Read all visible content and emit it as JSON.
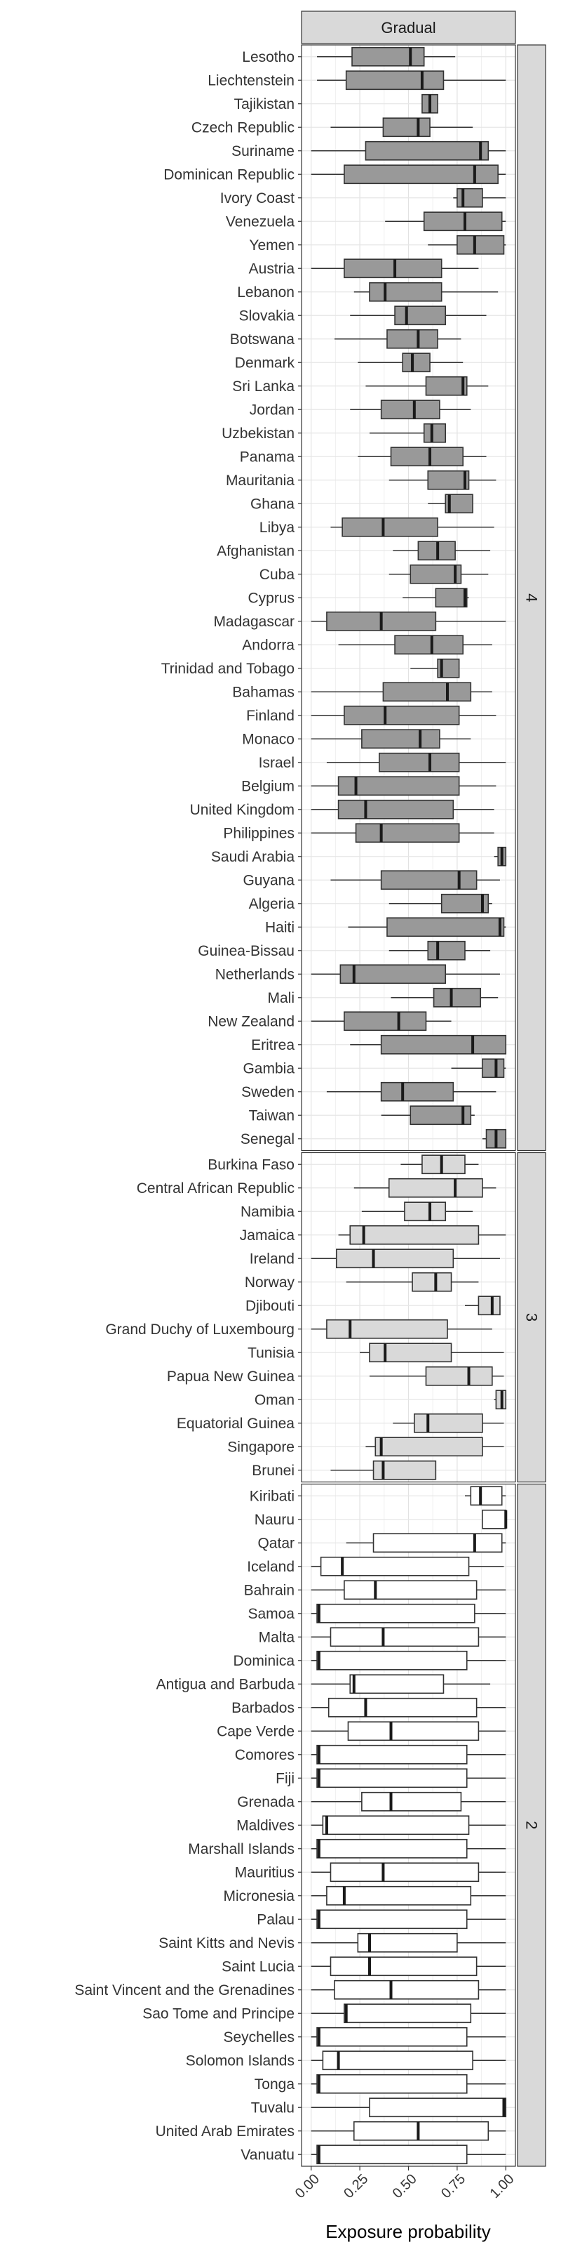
{
  "chart_data": {
    "type": "boxplot",
    "facet_title": "Gradual",
    "xlabel": "Exposure probability",
    "xlim": [
      0,
      1
    ],
    "x_ticks": [
      0,
      0.25,
      0.5,
      0.75,
      1
    ],
    "x_tick_labels": [
      "0.00",
      "0.25",
      "0.50",
      "0.75",
      "1.00"
    ],
    "grid": true,
    "panels": [
      {
        "label": "4",
        "fill": "#999999",
        "boxes": [
          {
            "category": "Lesotho",
            "whisker_low": 0.03,
            "q1": 0.21,
            "median": 0.51,
            "q3": 0.58,
            "whisker_high": 0.74
          },
          {
            "category": "Liechtenstein",
            "whisker_low": 0.03,
            "q1": 0.18,
            "median": 0.57,
            "q3": 0.68,
            "whisker_high": 1.0
          },
          {
            "category": "Tajikistan",
            "whisker_low": 0.57,
            "q1": 0.57,
            "median": 0.61,
            "q3": 0.65,
            "whisker_high": 0.65
          },
          {
            "category": "Czech Republic",
            "whisker_low": 0.1,
            "q1": 0.37,
            "median": 0.55,
            "q3": 0.61,
            "whisker_high": 0.83
          },
          {
            "category": "Suriname",
            "whisker_low": 0.0,
            "q1": 0.28,
            "median": 0.87,
            "q3": 0.91,
            "whisker_high": 1.0
          },
          {
            "category": "Dominican Republic",
            "whisker_low": 0.0,
            "q1": 0.17,
            "median": 0.84,
            "q3": 0.96,
            "whisker_high": 1.0
          },
          {
            "category": "Ivory Coast",
            "whisker_low": 0.73,
            "q1": 0.75,
            "median": 0.78,
            "q3": 0.88,
            "whisker_high": 1.0
          },
          {
            "category": "Venezuela",
            "whisker_low": 0.38,
            "q1": 0.58,
            "median": 0.79,
            "q3": 0.98,
            "whisker_high": 1.0
          },
          {
            "category": "Yemen",
            "whisker_low": 0.6,
            "q1": 0.75,
            "median": 0.84,
            "q3": 0.99,
            "whisker_high": 1.0
          },
          {
            "category": "Austria",
            "whisker_low": 0.0,
            "q1": 0.17,
            "median": 0.43,
            "q3": 0.67,
            "whisker_high": 0.86
          },
          {
            "category": "Lebanon",
            "whisker_low": 0.22,
            "q1": 0.3,
            "median": 0.38,
            "q3": 0.67,
            "whisker_high": 0.96
          },
          {
            "category": "Slovakia",
            "whisker_low": 0.2,
            "q1": 0.43,
            "median": 0.49,
            "q3": 0.69,
            "whisker_high": 0.9
          },
          {
            "category": "Botswana",
            "whisker_low": 0.12,
            "q1": 0.39,
            "median": 0.55,
            "q3": 0.65,
            "whisker_high": 0.77
          },
          {
            "category": "Denmark",
            "whisker_low": 0.24,
            "q1": 0.47,
            "median": 0.52,
            "q3": 0.61,
            "whisker_high": 0.78
          },
          {
            "category": "Sri Lanka",
            "whisker_low": 0.28,
            "q1": 0.59,
            "median": 0.78,
            "q3": 0.8,
            "whisker_high": 0.91
          },
          {
            "category": "Jordan",
            "whisker_low": 0.2,
            "q1": 0.36,
            "median": 0.53,
            "q3": 0.66,
            "whisker_high": 0.82
          },
          {
            "category": "Uzbekistan",
            "whisker_low": 0.3,
            "q1": 0.58,
            "median": 0.62,
            "q3": 0.69,
            "whisker_high": 0.69
          },
          {
            "category": "Panama",
            "whisker_low": 0.24,
            "q1": 0.41,
            "median": 0.61,
            "q3": 0.78,
            "whisker_high": 0.9
          },
          {
            "category": "Mauritania",
            "whisker_low": 0.4,
            "q1": 0.6,
            "median": 0.79,
            "q3": 0.81,
            "whisker_high": 0.95
          },
          {
            "category": "Ghana",
            "whisker_low": 0.6,
            "q1": 0.69,
            "median": 0.71,
            "q3": 0.83,
            "whisker_high": 0.83
          },
          {
            "category": "Libya",
            "whisker_low": 0.1,
            "q1": 0.16,
            "median": 0.37,
            "q3": 0.65,
            "whisker_high": 0.94
          },
          {
            "category": "Afghanistan",
            "whisker_low": 0.42,
            "q1": 0.55,
            "median": 0.65,
            "q3": 0.74,
            "whisker_high": 0.92
          },
          {
            "category": "Cuba",
            "whisker_low": 0.4,
            "q1": 0.51,
            "median": 0.74,
            "q3": 0.77,
            "whisker_high": 0.91
          },
          {
            "category": "Cyprus",
            "whisker_low": 0.47,
            "q1": 0.64,
            "median": 0.79,
            "q3": 0.8,
            "whisker_high": 0.81
          },
          {
            "category": "Madagascar",
            "whisker_low": 0.0,
            "q1": 0.08,
            "median": 0.36,
            "q3": 0.64,
            "whisker_high": 1.0
          },
          {
            "category": "Andorra",
            "whisker_low": 0.14,
            "q1": 0.43,
            "median": 0.62,
            "q3": 0.78,
            "whisker_high": 0.93
          },
          {
            "category": "Trinidad and Tobago",
            "whisker_low": 0.51,
            "q1": 0.65,
            "median": 0.67,
            "q3": 0.76,
            "whisker_high": 0.76
          },
          {
            "category": "Bahamas",
            "whisker_low": 0.0,
            "q1": 0.37,
            "median": 0.7,
            "q3": 0.82,
            "whisker_high": 0.93
          },
          {
            "category": "Finland",
            "whisker_low": 0.0,
            "q1": 0.17,
            "median": 0.38,
            "q3": 0.76,
            "whisker_high": 0.95
          },
          {
            "category": "Monaco",
            "whisker_low": 0.0,
            "q1": 0.26,
            "median": 0.56,
            "q3": 0.66,
            "whisker_high": 0.82
          },
          {
            "category": "Israel",
            "whisker_low": 0.08,
            "q1": 0.35,
            "median": 0.61,
            "q3": 0.76,
            "whisker_high": 1.0
          },
          {
            "category": "Belgium",
            "whisker_low": 0.0,
            "q1": 0.14,
            "median": 0.23,
            "q3": 0.76,
            "whisker_high": 0.95
          },
          {
            "category": "United Kingdom",
            "whisker_low": 0.0,
            "q1": 0.14,
            "median": 0.28,
            "q3": 0.73,
            "whisker_high": 0.94
          },
          {
            "category": "Philippines",
            "whisker_low": 0.0,
            "q1": 0.23,
            "median": 0.36,
            "q3": 0.76,
            "whisker_high": 0.94
          },
          {
            "category": "Saudi Arabia",
            "whisker_low": 0.94,
            "q1": 0.96,
            "median": 0.98,
            "q3": 1.0,
            "whisker_high": 1.0
          },
          {
            "category": "Guyana",
            "whisker_low": 0.1,
            "q1": 0.36,
            "median": 0.76,
            "q3": 0.85,
            "whisker_high": 0.97
          },
          {
            "category": "Algeria",
            "whisker_low": 0.4,
            "q1": 0.67,
            "median": 0.88,
            "q3": 0.91,
            "whisker_high": 0.93
          },
          {
            "category": "Haiti",
            "whisker_low": 0.19,
            "q1": 0.39,
            "median": 0.97,
            "q3": 0.99,
            "whisker_high": 1.0
          },
          {
            "category": "Guinea-Bissau",
            "whisker_low": 0.4,
            "q1": 0.6,
            "median": 0.65,
            "q3": 0.79,
            "whisker_high": 0.92
          },
          {
            "category": "Netherlands",
            "whisker_low": 0.0,
            "q1": 0.15,
            "median": 0.22,
            "q3": 0.69,
            "whisker_high": 0.97
          },
          {
            "category": "Mali",
            "whisker_low": 0.41,
            "q1": 0.63,
            "median": 0.72,
            "q3": 0.87,
            "whisker_high": 0.96
          },
          {
            "category": "New Zealand",
            "whisker_low": 0.0,
            "q1": 0.17,
            "median": 0.45,
            "q3": 0.59,
            "whisker_high": 0.72
          },
          {
            "category": "Eritrea",
            "whisker_low": 0.2,
            "q1": 0.36,
            "median": 0.83,
            "q3": 1.0,
            "whisker_high": 1.0
          },
          {
            "category": "Gambia",
            "whisker_low": 0.72,
            "q1": 0.88,
            "median": 0.95,
            "q3": 0.99,
            "whisker_high": 1.0
          },
          {
            "category": "Sweden",
            "whisker_low": 0.08,
            "q1": 0.36,
            "median": 0.47,
            "q3": 0.73,
            "whisker_high": 0.95
          },
          {
            "category": "Taiwan",
            "whisker_low": 0.36,
            "q1": 0.51,
            "median": 0.78,
            "q3": 0.82,
            "whisker_high": 0.84
          },
          {
            "category": "Senegal",
            "whisker_low": 0.88,
            "q1": 0.9,
            "median": 0.95,
            "q3": 1.0,
            "whisker_high": 1.0
          }
        ]
      },
      {
        "label": "3",
        "fill": "#d9d9d9",
        "boxes": [
          {
            "category": "Burkina Faso",
            "whisker_low": 0.46,
            "q1": 0.57,
            "median": 0.67,
            "q3": 0.79,
            "whisker_high": 0.86
          },
          {
            "category": "Central African Republic",
            "whisker_low": 0.22,
            "q1": 0.4,
            "median": 0.74,
            "q3": 0.88,
            "whisker_high": 0.95
          },
          {
            "category": "Namibia",
            "whisker_low": 0.26,
            "q1": 0.48,
            "median": 0.61,
            "q3": 0.69,
            "whisker_high": 0.83
          },
          {
            "category": "Jamaica",
            "whisker_low": 0.14,
            "q1": 0.2,
            "median": 0.27,
            "q3": 0.86,
            "whisker_high": 1.0
          },
          {
            "category": "Ireland",
            "whisker_low": 0.0,
            "q1": 0.13,
            "median": 0.32,
            "q3": 0.73,
            "whisker_high": 0.97
          },
          {
            "category": "Norway",
            "whisker_low": 0.18,
            "q1": 0.52,
            "median": 0.64,
            "q3": 0.72,
            "whisker_high": 0.86
          },
          {
            "category": "Djibouti",
            "whisker_low": 0.79,
            "q1": 0.86,
            "median": 0.93,
            "q3": 0.97,
            "whisker_high": 0.97
          },
          {
            "category": "Grand Duchy of Luxembourg",
            "whisker_low": 0.0,
            "q1": 0.08,
            "median": 0.2,
            "q3": 0.7,
            "whisker_high": 0.93
          },
          {
            "category": "Tunisia",
            "whisker_low": 0.25,
            "q1": 0.3,
            "median": 0.38,
            "q3": 0.72,
            "whisker_high": 0.99
          },
          {
            "category": "Papua New Guinea",
            "whisker_low": 0.3,
            "q1": 0.59,
            "median": 0.81,
            "q3": 0.93,
            "whisker_high": 0.99
          },
          {
            "category": "Oman",
            "whisker_low": 0.94,
            "q1": 0.95,
            "median": 0.98,
            "q3": 1.0,
            "whisker_high": 1.0
          },
          {
            "category": "Equatorial Guinea",
            "whisker_low": 0.42,
            "q1": 0.53,
            "median": 0.6,
            "q3": 0.88,
            "whisker_high": 0.99
          },
          {
            "category": "Singapore",
            "whisker_low": 0.28,
            "q1": 0.33,
            "median": 0.36,
            "q3": 0.88,
            "whisker_high": 0.99
          },
          {
            "category": "Brunei",
            "whisker_low": 0.1,
            "q1": 0.32,
            "median": 0.37,
            "q3": 0.64,
            "whisker_high": 0.64
          }
        ]
      },
      {
        "label": "2",
        "fill": "#ffffff",
        "boxes": [
          {
            "category": "Kiribati",
            "whisker_low": 0.79,
            "q1": 0.82,
            "median": 0.87,
            "q3": 0.98,
            "whisker_high": 1.0
          },
          {
            "category": "Nauru",
            "whisker_low": 0.88,
            "q1": 0.88,
            "median": 1.0,
            "q3": 1.0,
            "whisker_high": 1.0
          },
          {
            "category": "Qatar",
            "whisker_low": 0.18,
            "q1": 0.32,
            "median": 0.84,
            "q3": 0.98,
            "whisker_high": 1.0
          },
          {
            "category": "Iceland",
            "whisker_low": 0.0,
            "q1": 0.05,
            "median": 0.16,
            "q3": 0.81,
            "whisker_high": 0.99
          },
          {
            "category": "Bahrain",
            "whisker_low": 0.0,
            "q1": 0.17,
            "median": 0.33,
            "q3": 0.85,
            "whisker_high": 1.0
          },
          {
            "category": "Samoa",
            "whisker_low": 0.0,
            "q1": 0.03,
            "median": 0.04,
            "q3": 0.84,
            "whisker_high": 1.0
          },
          {
            "category": "Malta",
            "whisker_low": 0.0,
            "q1": 0.1,
            "median": 0.37,
            "q3": 0.86,
            "whisker_high": 1.0
          },
          {
            "category": "Dominica",
            "whisker_low": 0.0,
            "q1": 0.03,
            "median": 0.04,
            "q3": 0.8,
            "whisker_high": 1.0
          },
          {
            "category": "Antigua and Barbuda",
            "whisker_low": 0.0,
            "q1": 0.2,
            "median": 0.22,
            "q3": 0.68,
            "whisker_high": 0.92
          },
          {
            "category": "Barbados",
            "whisker_low": 0.0,
            "q1": 0.09,
            "median": 0.28,
            "q3": 0.85,
            "whisker_high": 1.0
          },
          {
            "category": "Cape Verde",
            "whisker_low": 0.0,
            "q1": 0.19,
            "median": 0.41,
            "q3": 0.86,
            "whisker_high": 1.0
          },
          {
            "category": "Comores",
            "whisker_low": 0.0,
            "q1": 0.03,
            "median": 0.04,
            "q3": 0.8,
            "whisker_high": 1.0
          },
          {
            "category": "Fiji",
            "whisker_low": 0.0,
            "q1": 0.03,
            "median": 0.04,
            "q3": 0.8,
            "whisker_high": 1.0
          },
          {
            "category": "Grenada",
            "whisker_low": 0.0,
            "q1": 0.26,
            "median": 0.41,
            "q3": 0.77,
            "whisker_high": 1.0
          },
          {
            "category": "Maldives",
            "whisker_low": 0.0,
            "q1": 0.06,
            "median": 0.08,
            "q3": 0.81,
            "whisker_high": 1.0
          },
          {
            "category": "Marshall Islands",
            "whisker_low": 0.0,
            "q1": 0.03,
            "median": 0.04,
            "q3": 0.8,
            "whisker_high": 1.0
          },
          {
            "category": "Mauritius",
            "whisker_low": 0.0,
            "q1": 0.1,
            "median": 0.37,
            "q3": 0.86,
            "whisker_high": 1.0
          },
          {
            "category": "Micronesia",
            "whisker_low": 0.0,
            "q1": 0.08,
            "median": 0.17,
            "q3": 0.82,
            "whisker_high": 1.0
          },
          {
            "category": "Palau",
            "whisker_low": 0.0,
            "q1": 0.03,
            "median": 0.04,
            "q3": 0.8,
            "whisker_high": 1.0
          },
          {
            "category": "Saint Kitts and Nevis",
            "whisker_low": 0.0,
            "q1": 0.24,
            "median": 0.3,
            "q3": 0.75,
            "whisker_high": 1.0
          },
          {
            "category": "Saint Lucia",
            "whisker_low": 0.0,
            "q1": 0.1,
            "median": 0.3,
            "q3": 0.85,
            "whisker_high": 1.0
          },
          {
            "category": "Saint Vincent and the Grenadines",
            "whisker_low": 0.0,
            "q1": 0.12,
            "median": 0.41,
            "q3": 0.86,
            "whisker_high": 1.0
          },
          {
            "category": "Sao Tome and Principe",
            "whisker_low": 0.0,
            "q1": 0.17,
            "median": 0.18,
            "q3": 0.82,
            "whisker_high": 1.0
          },
          {
            "category": "Seychelles",
            "whisker_low": 0.0,
            "q1": 0.03,
            "median": 0.04,
            "q3": 0.8,
            "whisker_high": 1.0
          },
          {
            "category": "Solomon Islands",
            "whisker_low": 0.0,
            "q1": 0.06,
            "median": 0.14,
            "q3": 0.83,
            "whisker_high": 1.0
          },
          {
            "category": "Tonga",
            "whisker_low": 0.0,
            "q1": 0.03,
            "median": 0.04,
            "q3": 0.8,
            "whisker_high": 1.0
          },
          {
            "category": "Tuvalu",
            "whisker_low": 0.0,
            "q1": 0.3,
            "median": 0.99,
            "q3": 1.0,
            "whisker_high": 1.0
          },
          {
            "category": "United Arab Emirates",
            "whisker_low": 0.0,
            "q1": 0.22,
            "median": 0.55,
            "q3": 0.91,
            "whisker_high": 1.0
          },
          {
            "category": "Vanuatu",
            "whisker_low": 0.0,
            "q1": 0.03,
            "median": 0.04,
            "q3": 0.8,
            "whisker_high": 1.0
          }
        ]
      }
    ]
  }
}
